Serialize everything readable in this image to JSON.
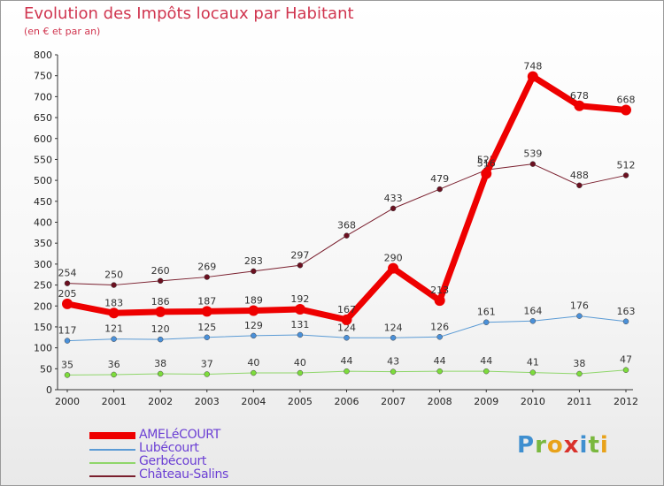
{
  "title": "Evolution des Impôts locaux par Habitant",
  "subtitle": "(en € et par an)",
  "logo": "Proxiti",
  "chart_data": {
    "type": "line",
    "title": "Evolution des Impôts locaux par Habitant",
    "subtitle": "(en € et par an)",
    "xlabel": "",
    "ylabel": "",
    "ylim": [
      0,
      800
    ],
    "yticks": [
      0,
      50,
      100,
      150,
      200,
      250,
      300,
      350,
      400,
      450,
      500,
      550,
      600,
      650,
      700,
      750,
      800
    ],
    "x": [
      "2000",
      "2001",
      "2002",
      "2003",
      "2004",
      "2005",
      "2006",
      "2007",
      "2008",
      "2009",
      "2010",
      "2011",
      "2012"
    ],
    "grid": false,
    "legend_position": "bottom-left",
    "series": [
      {
        "name": "Château-Salins",
        "color": "#7a1f2e",
        "marker": "#6b1020",
        "width": 1,
        "values": [
          254,
          250,
          260,
          269,
          283,
          297,
          368,
          433,
          479,
          525,
          539,
          488,
          512
        ],
        "labels": [
          "254",
          "250",
          "260",
          "269",
          "283",
          "297",
          "368",
          "433",
          "479",
          "525",
          "539",
          "488",
          "512"
        ]
      },
      {
        "name": "Gerbécourt",
        "color": "#8fd66a",
        "marker": "#7ddc3c",
        "width": 1,
        "values": [
          35,
          36,
          38,
          37,
          40,
          40,
          44,
          43,
          44,
          44,
          41,
          38,
          47
        ],
        "labels": [
          "35",
          "36",
          "38",
          "37",
          "40",
          "40",
          "44",
          "43",
          "44",
          "44",
          "41",
          "38",
          "47"
        ]
      },
      {
        "name": "Lubécourt",
        "color": "#5b9bd5",
        "marker": "#4a90d9",
        "width": 1,
        "values": [
          117,
          121,
          120,
          125,
          129,
          131,
          124,
          124,
          126,
          161,
          164,
          176,
          163
        ],
        "labels": [
          "117",
          "121",
          "120",
          "125",
          "129",
          "131",
          "124",
          "124",
          "126",
          "161",
          "164",
          "176",
          "163"
        ]
      },
      {
        "name": "AMELéCOURT",
        "color": "#ee0000",
        "marker": "#ee0000",
        "width": 7,
        "values": [
          205,
          183,
          186,
          187,
          189,
          192,
          167,
          290,
          213,
          516,
          748,
          678,
          668
        ],
        "labels": [
          "205",
          "183",
          "186",
          "187",
          "189",
          "192",
          "167",
          "290",
          "213",
          "516",
          "748",
          "678",
          "668"
        ]
      }
    ],
    "legend": [
      {
        "name": "AMELéCOURT",
        "color": "#ee0000",
        "width": 7
      },
      {
        "name": "Lubécourt",
        "color": "#5b9bd5",
        "width": 1
      },
      {
        "name": "Gerbécourt",
        "color": "#8fd66a",
        "width": 1
      },
      {
        "name": "Château-Salins",
        "color": "#7a1f2e",
        "width": 1
      }
    ]
  }
}
